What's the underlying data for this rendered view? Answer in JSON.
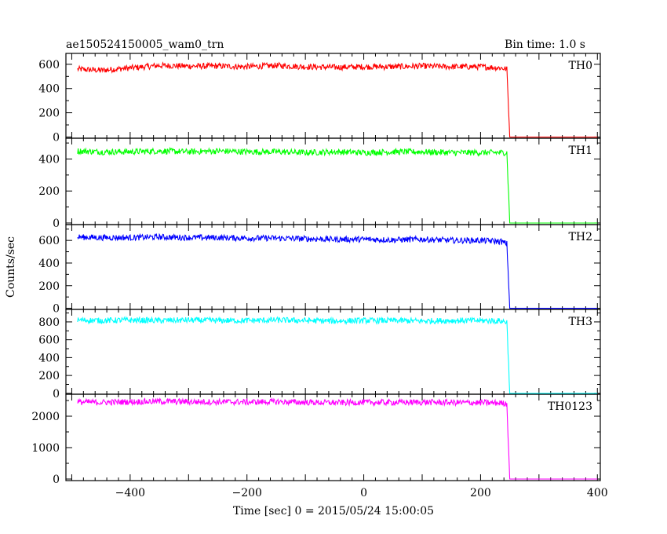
{
  "chart_data": {
    "type": "line",
    "title": "ae150524150005_wam0_trn",
    "bin_time": "Bin time: 1.0 s",
    "xlabel": "Time [sec] 0 = 2015/05/24 15:00:05",
    "ylabel": "Counts/sec",
    "xlim": [
      -510,
      405
    ],
    "x_ticks": [
      -400,
      -200,
      0,
      200,
      400
    ],
    "x_tick_labels": [
      "−400",
      "−200",
      "0",
      "200",
      "400"
    ],
    "grid": false,
    "panels": [
      {
        "name": "TH0",
        "color": "#ff0000",
        "ylim": [
          -10,
          690
        ],
        "y_ticks": [
          0,
          200,
          400,
          600
        ],
        "y_tick_labels": [
          "0",
          "200",
          "400",
          "600"
        ],
        "x": [
          -490,
          -450,
          -400,
          -350,
          -300,
          -250,
          -200,
          -150,
          -100,
          -50,
          0,
          50,
          100,
          150,
          200,
          235,
          240,
          245,
          250,
          300,
          400
        ],
        "y": [
          560,
          550,
          570,
          590,
          585,
          585,
          580,
          590,
          580,
          575,
          580,
          580,
          585,
          580,
          580,
          570,
          565,
          560,
          0,
          0,
          0
        ]
      },
      {
        "name": "TH1",
        "color": "#00ff00",
        "ylim": [
          -10,
          530
        ],
        "y_ticks": [
          0,
          200,
          400
        ],
        "y_tick_labels": [
          "0",
          "200",
          "400"
        ],
        "x": [
          -490,
          -450,
          -400,
          -350,
          -300,
          -250,
          -200,
          -150,
          -100,
          -50,
          0,
          50,
          100,
          150,
          200,
          235,
          240,
          245,
          250,
          300,
          400
        ],
        "y": [
          450,
          445,
          445,
          450,
          445,
          450,
          445,
          445,
          440,
          445,
          440,
          445,
          445,
          440,
          440,
          440,
          440,
          440,
          0,
          0,
          0
        ]
      },
      {
        "name": "TH2",
        "color": "#0000ff",
        "ylim": [
          -10,
          740
        ],
        "y_ticks": [
          0,
          200,
          400,
          600
        ],
        "y_tick_labels": [
          "0",
          "200",
          "400",
          "600"
        ],
        "x": [
          -490,
          -450,
          -400,
          -350,
          -300,
          -250,
          -200,
          -150,
          -100,
          -50,
          0,
          50,
          100,
          150,
          200,
          235,
          240,
          245,
          250,
          300,
          400
        ],
        "y": [
          630,
          625,
          625,
          630,
          625,
          625,
          620,
          620,
          615,
          610,
          610,
          605,
          610,
          600,
          600,
          590,
          580,
          570,
          0,
          0,
          0
        ]
      },
      {
        "name": "TH3",
        "color": "#00ffff",
        "ylim": [
          -10,
          940
        ],
        "y_ticks": [
          0,
          200,
          400,
          600,
          800
        ],
        "y_tick_labels": [
          "0",
          "200",
          "400",
          "600",
          "800"
        ],
        "x": [
          -490,
          -450,
          -400,
          -350,
          -300,
          -250,
          -200,
          -150,
          -100,
          -50,
          0,
          50,
          100,
          150,
          200,
          235,
          240,
          245,
          250,
          300,
          400
        ],
        "y": [
          820,
          815,
          820,
          815,
          820,
          815,
          815,
          820,
          815,
          810,
          815,
          815,
          810,
          815,
          815,
          810,
          805,
          800,
          0,
          0,
          0
        ]
      },
      {
        "name": "TH0123",
        "color": "#ff00ff",
        "ylim": [
          -50,
          2700
        ],
        "y_ticks": [
          0,
          1000,
          2000
        ],
        "y_tick_labels": [
          "0",
          "1000",
          "2000"
        ],
        "x": [
          -490,
          -450,
          -400,
          -350,
          -300,
          -250,
          -200,
          -150,
          -100,
          -50,
          0,
          50,
          100,
          150,
          200,
          235,
          240,
          245,
          250,
          300,
          400
        ],
        "y": [
          2450,
          2440,
          2460,
          2470,
          2460,
          2455,
          2450,
          2460,
          2440,
          2430,
          2440,
          2440,
          2445,
          2435,
          2430,
          2420,
          2410,
          2400,
          0,
          0,
          0
        ]
      }
    ]
  }
}
